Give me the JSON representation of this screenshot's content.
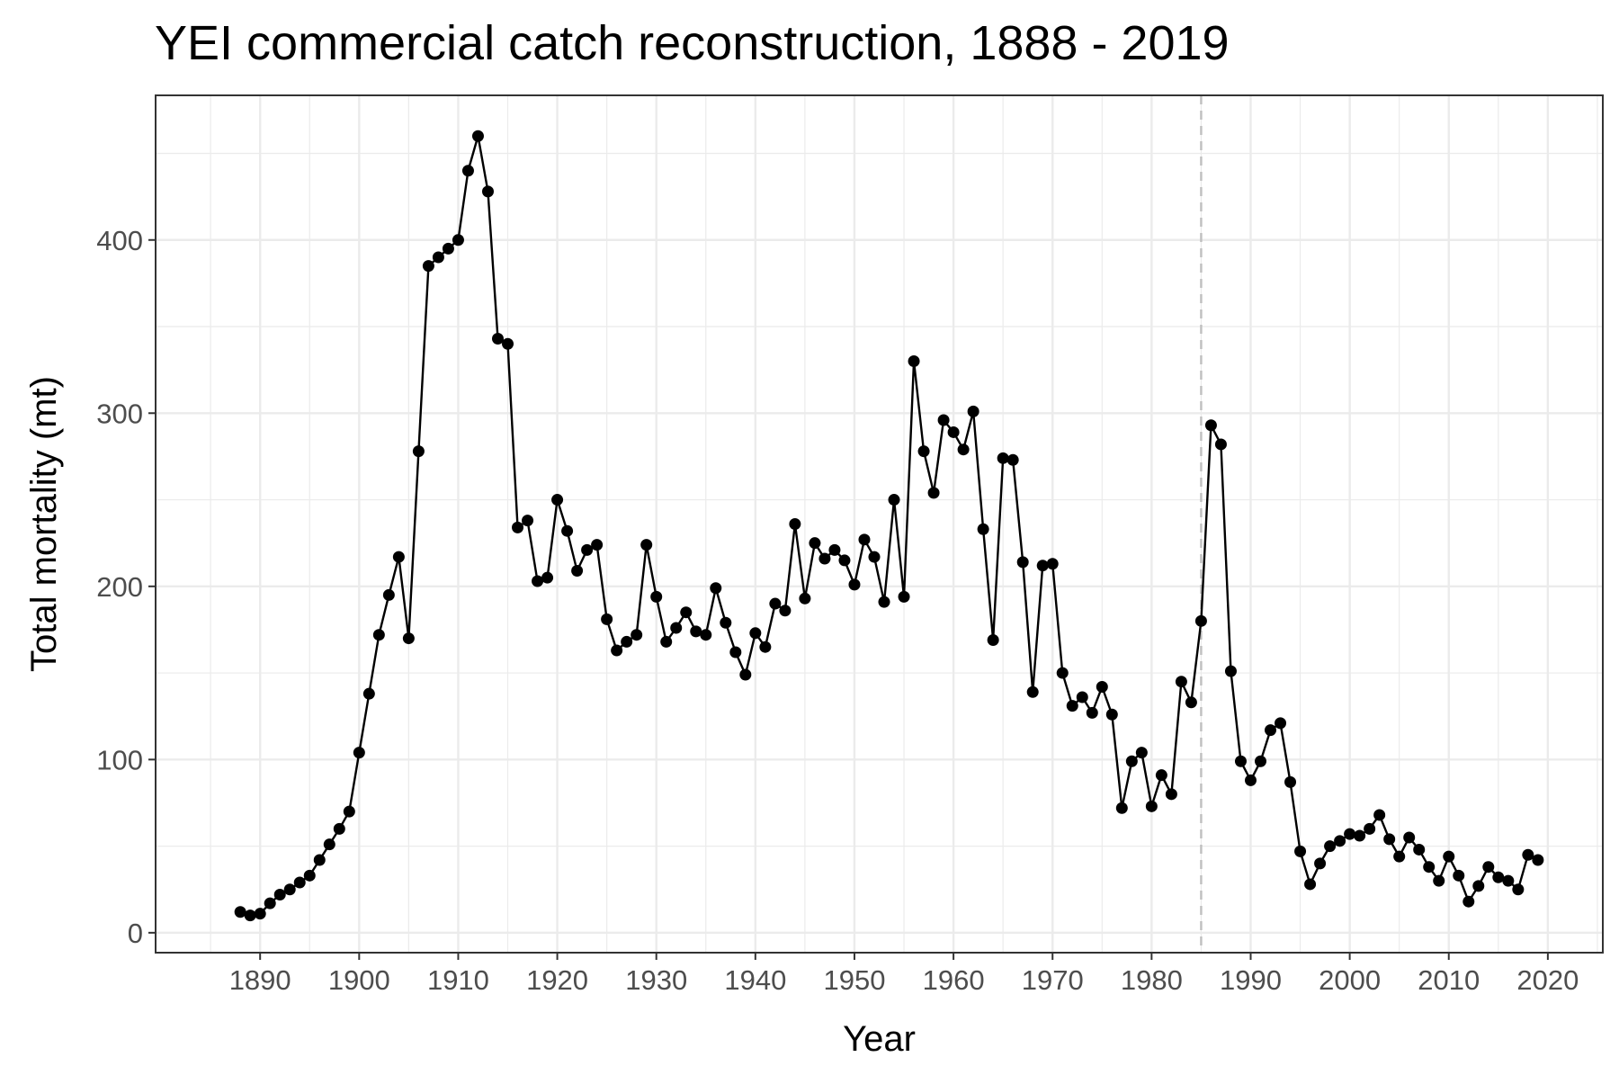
{
  "chart_data": {
    "type": "line",
    "title": "YEI commercial catch reconstruction, 1888 - 2019",
    "xlabel": "Year",
    "ylabel": "Total mortality (mt)",
    "xlim": [
      1879.45,
      2025.55
    ],
    "ylim": [
      -11.5,
      483.5
    ],
    "x_ticks": [
      1890,
      1900,
      1910,
      1920,
      1930,
      1940,
      1950,
      1960,
      1970,
      1980,
      1990,
      2000,
      2010,
      2020
    ],
    "y_ticks": [
      0,
      100,
      200,
      300,
      400
    ],
    "grid": true,
    "markers": true,
    "reference_line": {
      "x": 1985,
      "style": "dashed"
    },
    "colors": {
      "line": "#000000",
      "grid": "#ebebeb",
      "reference": "#bfbfbf",
      "panel_border": "#333333"
    },
    "series": [
      {
        "x": [
          1888,
          1889,
          1890,
          1891,
          1892,
          1893,
          1894,
          1895,
          1896,
          1897,
          1898,
          1899,
          1900,
          1901,
          1902,
          1903,
          1904,
          1905,
          1906,
          1907,
          1908,
          1909,
          1910,
          1911,
          1912,
          1913,
          1914,
          1915,
          1916,
          1917,
          1918,
          1919,
          1920,
          1921,
          1922,
          1923,
          1924,
          1925,
          1926,
          1927,
          1928,
          1929,
          1930,
          1931,
          1932,
          1933,
          1934,
          1935,
          1936,
          1937,
          1938,
          1939,
          1940,
          1941,
          1942,
          1943,
          1944,
          1945,
          1946,
          1947,
          1948,
          1949,
          1950,
          1951,
          1952,
          1953,
          1954,
          1955,
          1956,
          1957,
          1958,
          1959,
          1960,
          1961,
          1962,
          1963,
          1964,
          1965,
          1966,
          1967,
          1968,
          1969,
          1970,
          1971,
          1972,
          1973,
          1974,
          1975,
          1976,
          1977,
          1978,
          1979,
          1980,
          1981,
          1982,
          1983,
          1984,
          1985,
          1986,
          1987,
          1988,
          1989,
          1990,
          1991,
          1992,
          1993,
          1994,
          1995,
          1996,
          1997,
          1998,
          1999,
          2000,
          2001,
          2002,
          2003,
          2004,
          2005,
          2006,
          2007,
          2008,
          2009,
          2010,
          2011,
          2012,
          2013,
          2014,
          2015,
          2016,
          2017,
          2018,
          2019
        ],
        "values": [
          12,
          10,
          11,
          17,
          22,
          25,
          29,
          33,
          42,
          51,
          60,
          70,
          104,
          138,
          172,
          195,
          217,
          170,
          278,
          385,
          390,
          395,
          400,
          440,
          460,
          428,
          343,
          340,
          234,
          238,
          203,
          205,
          250,
          232,
          209,
          221,
          224,
          181,
          163,
          168,
          172,
          224,
          194,
          168,
          176,
          185,
          174,
          172,
          199,
          179,
          162,
          149,
          173,
          165,
          190,
          186,
          236,
          193,
          225,
          216,
          221,
          215,
          201,
          227,
          217,
          191,
          250,
          194,
          330,
          278,
          254,
          296,
          289,
          279,
          301,
          233,
          169,
          274,
          273,
          214,
          139,
          212,
          213,
          150,
          131,
          136,
          127,
          142,
          126,
          72,
          99,
          104,
          73,
          91,
          80,
          145,
          133,
          180,
          293,
          282,
          151,
          99,
          88,
          99,
          117,
          121,
          87,
          47,
          28,
          40,
          50,
          53,
          57,
          56,
          60,
          68,
          54,
          44,
          55,
          48,
          38,
          30,
          44,
          33,
          18,
          27,
          38,
          32,
          30,
          25,
          45,
          42
        ]
      }
    ]
  }
}
